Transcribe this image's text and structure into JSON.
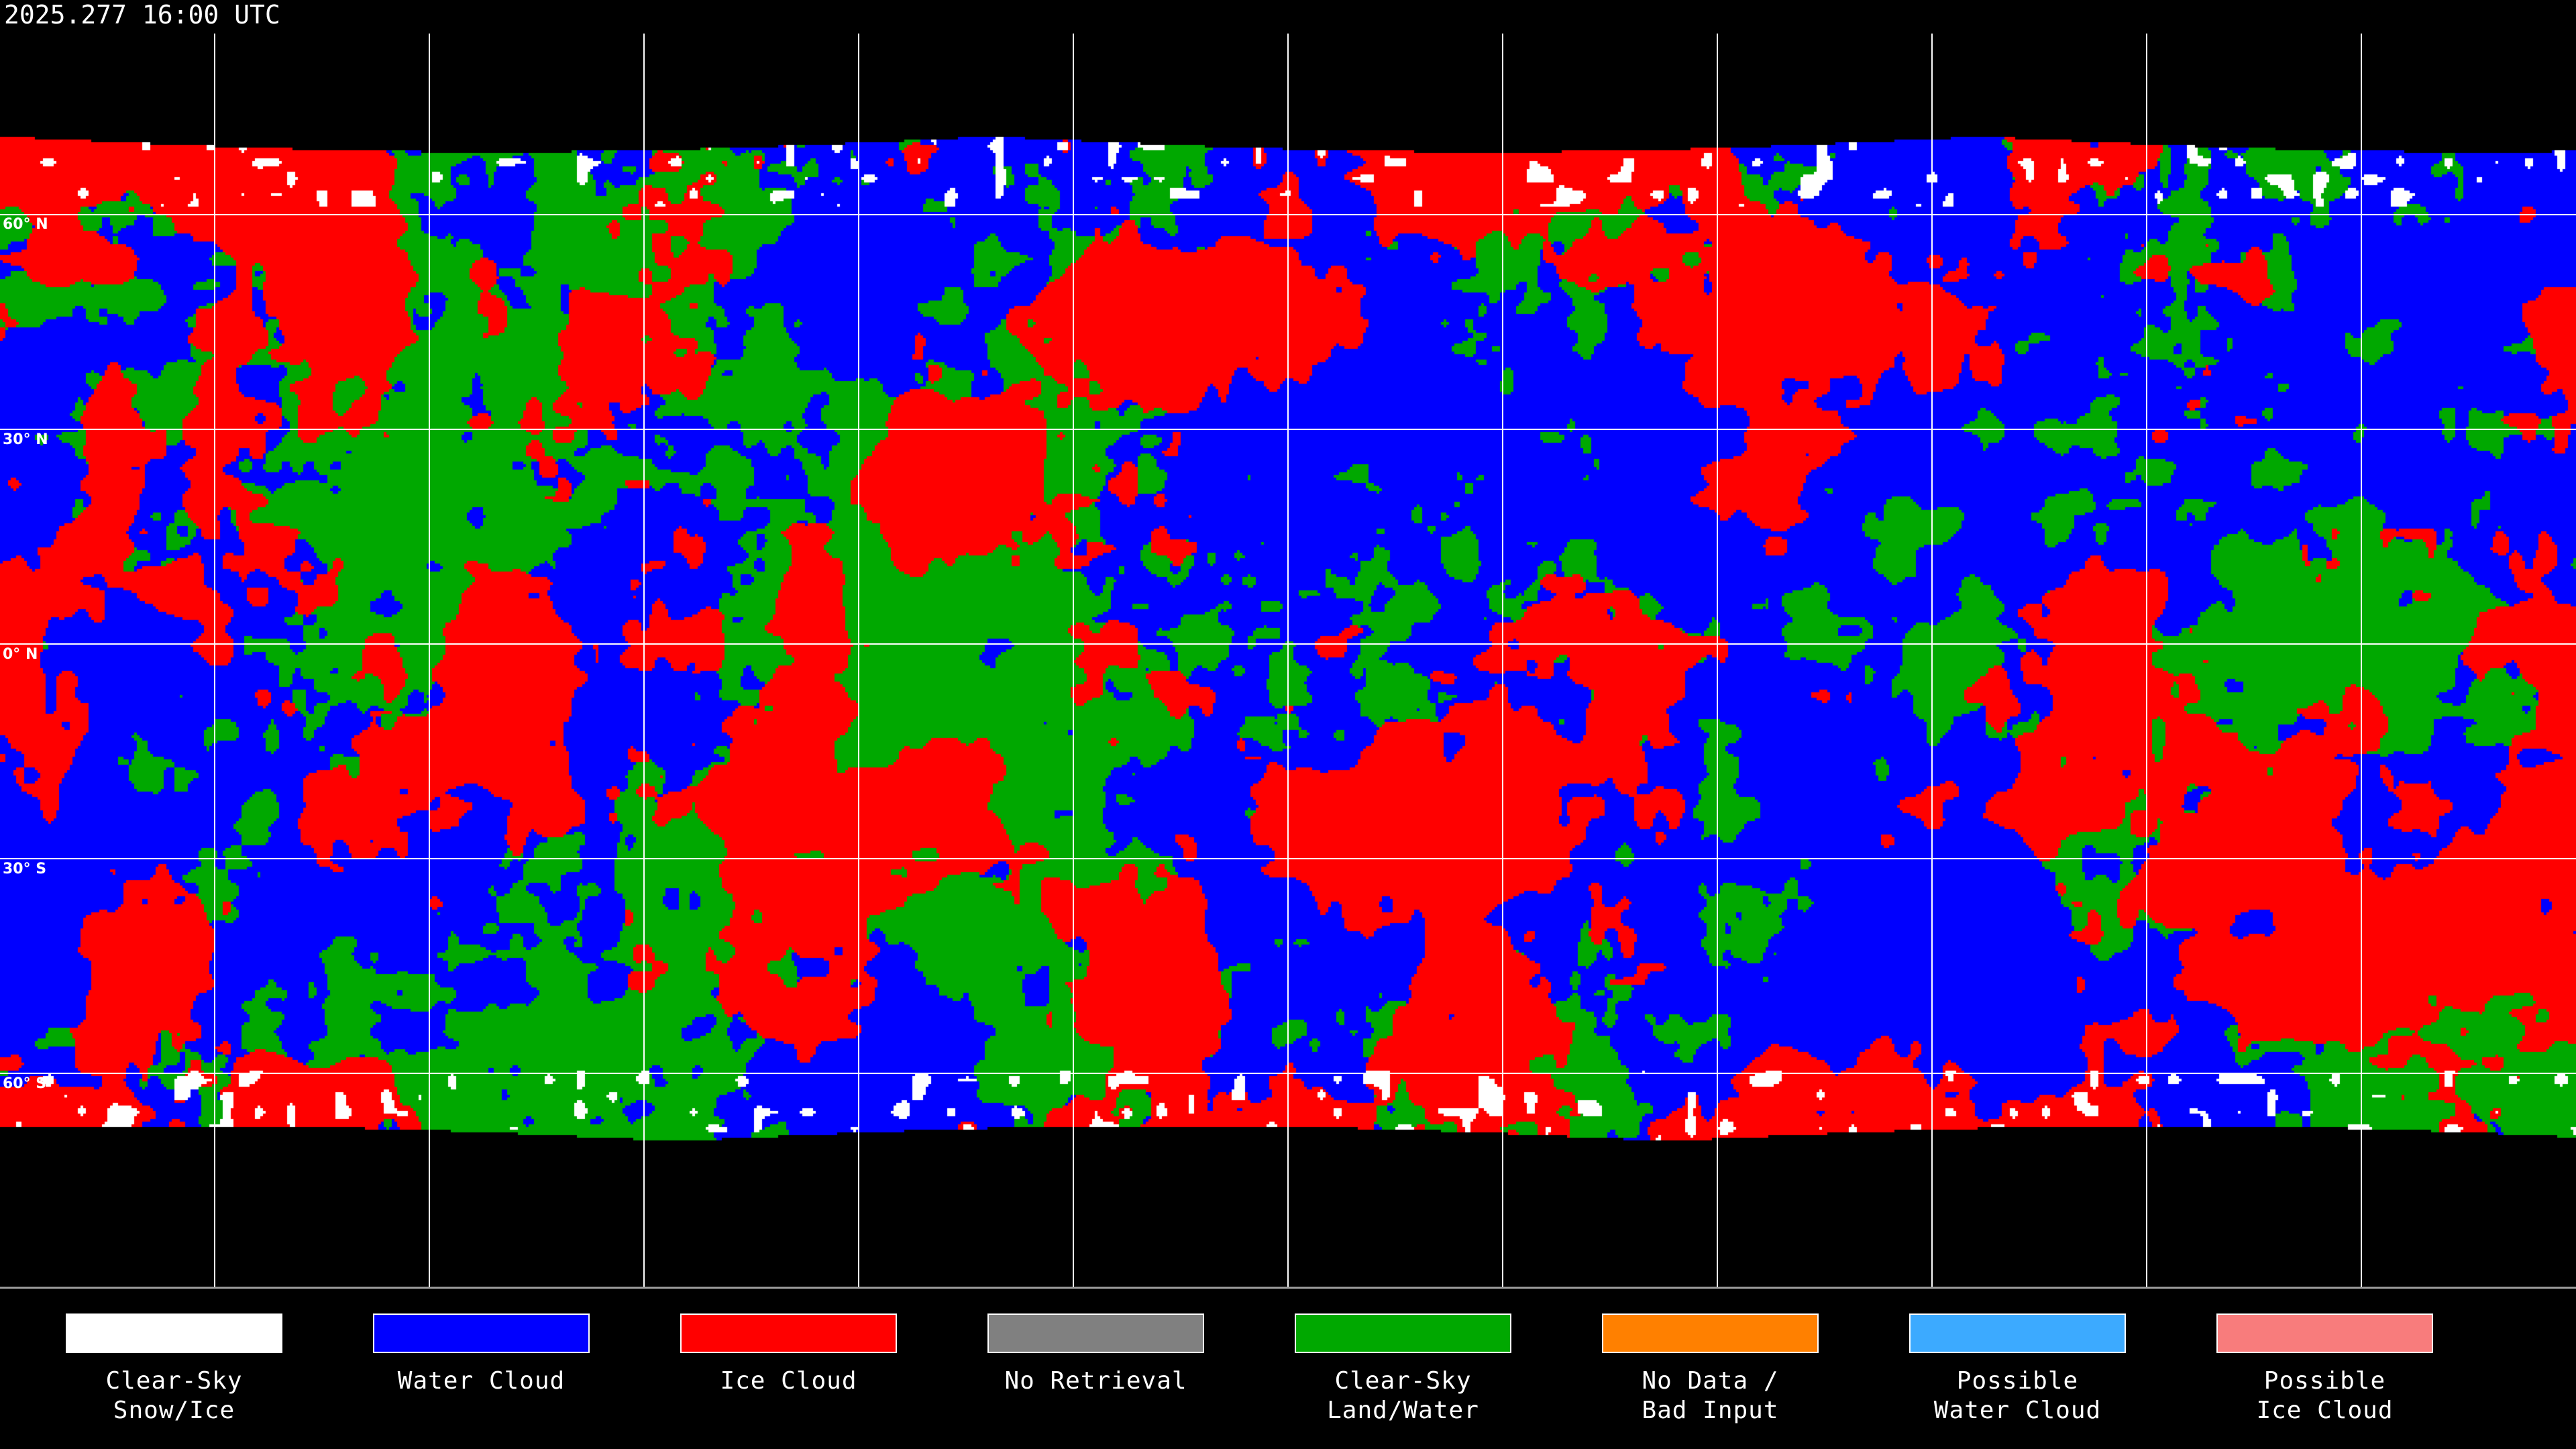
{
  "title": "2025.277 16:00 UTC",
  "map": {
    "projection": "equirectangular",
    "grid_spacing_degrees": 30,
    "lat_labels": [
      "60° N",
      "30° N",
      "0° N",
      "30° S",
      "60° S"
    ],
    "grid_color": "#ffffff",
    "coastline_color": "#ffffff"
  },
  "legend": [
    {
      "line1": "Clear-Sky",
      "line2": "Snow/Ice",
      "color": "#ffffff"
    },
    {
      "line1": "Water Cloud",
      "line2": "",
      "color": "#0000ff"
    },
    {
      "line1": "Ice Cloud",
      "line2": "",
      "color": "#ff0000"
    },
    {
      "line1": "No Retrieval",
      "line2": "",
      "color": "#808080"
    },
    {
      "line1": "Clear-Sky",
      "line2": "Land/Water",
      "color": "#00a800"
    },
    {
      "line1": "No Data /",
      "line2": "Bad Input",
      "color": "#ff8000"
    },
    {
      "line1": "Possible",
      "line2": "Water Cloud",
      "color": "#3caaff"
    },
    {
      "line1": "Possible",
      "line2": "Ice Cloud",
      "color": "#f87c7c"
    }
  ]
}
